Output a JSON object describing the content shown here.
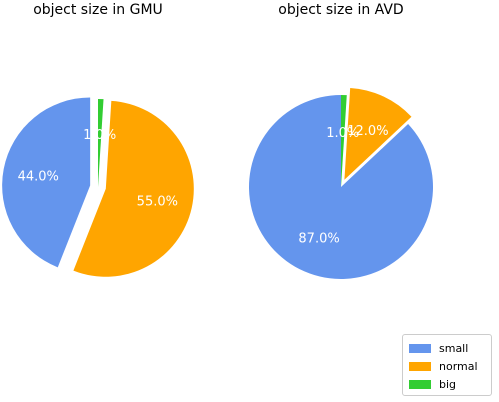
{
  "chart_data": [
    {
      "type": "pie",
      "title": "object size in GMU",
      "categories": [
        "small",
        "normal",
        "big"
      ],
      "values": [
        44.0,
        55.0,
        1.0
      ],
      "labels": [
        "44.0%",
        "55.0%",
        "1.0%"
      ],
      "colors": [
        "#6495ed",
        "#ffa500",
        "#32cd32"
      ],
      "exploded": [
        true,
        true,
        false
      ],
      "startangle_deg": 90,
      "direction": "counterclockwise"
    },
    {
      "type": "pie",
      "title": "object size in AVD",
      "categories": [
        "small",
        "normal",
        "big"
      ],
      "values": [
        87.0,
        12.0,
        1.0
      ],
      "labels": [
        "87.0%",
        "12.0%",
        "1.0%"
      ],
      "colors": [
        "#6495ed",
        "#ffa500",
        "#32cd32"
      ],
      "exploded": [
        false,
        true,
        false
      ],
      "startangle_deg": 90,
      "direction": "counterclockwise"
    }
  ],
  "legend": {
    "placement": "lower-right",
    "items": [
      {
        "label": "small",
        "color": "#6495ed"
      },
      {
        "label": "normal",
        "color": "#ffa500"
      },
      {
        "label": "big",
        "color": "#32cd32"
      }
    ]
  }
}
